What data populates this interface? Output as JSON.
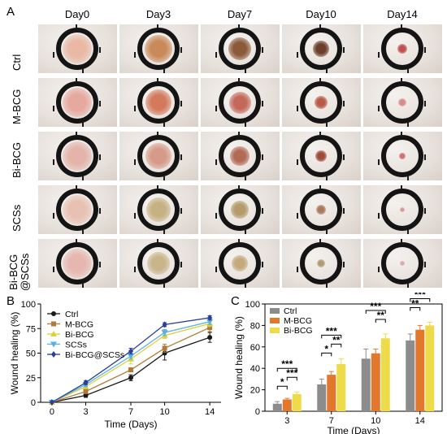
{
  "panels": {
    "a": "A",
    "b": "B",
    "c": "C"
  },
  "days": [
    "Day0",
    "Day3",
    "Day7",
    "Day10",
    "Day14"
  ],
  "groups": [
    "Ctrl",
    "M-BCG",
    "Bi-BCG",
    "SCSs",
    "Bi-BCG\n@SCSs"
  ],
  "wound_tones": [
    [
      "#e9b9a6",
      "#c98a5a",
      "#8c5a3a",
      "#6b3f2a",
      "#c05050"
    ],
    [
      "#e6a9a0",
      "#d47a5c",
      "#c4685a",
      "#b85a4a",
      "#d98a8a"
    ],
    [
      "#e4b4aa",
      "#d69a88",
      "#b26a55",
      "#a04a3a",
      "#cf7070"
    ],
    [
      "#e8c1b3",
      "#c6b182",
      "#b59a6a",
      "#a87a5a",
      "#d89a9a"
    ],
    [
      "#e6b7b0",
      "#c8b58a",
      "#c2aa7a",
      "#b29a74",
      "#dca8a8"
    ]
  ],
  "wound_sizes": [
    [
      1.0,
      0.95,
      0.8,
      0.55,
      0.35
    ],
    [
      1.0,
      0.9,
      0.75,
      0.45,
      0.28
    ],
    [
      1.0,
      0.9,
      0.65,
      0.4,
      0.2
    ],
    [
      1.0,
      0.85,
      0.6,
      0.35,
      0.18
    ],
    [
      1.0,
      0.8,
      0.55,
      0.3,
      0.16
    ]
  ],
  "chart_data": [
    {
      "type": "line",
      "ylabel": "Wound healing (%)",
      "xlabel": "Time (Days)",
      "x": [
        0,
        3,
        7,
        10,
        14
      ],
      "xlim": [
        -1,
        15
      ],
      "ylim": [
        0,
        100
      ],
      "yticks": [
        0,
        25,
        50,
        75,
        100
      ],
      "legend_position": "top-left",
      "series": [
        {
          "name": "Ctrl",
          "color": "#1a1a1a",
          "marker": "circle",
          "values": [
            0,
            7,
            25,
            50,
            66
          ],
          "err": [
            0,
            2,
            3,
            7,
            5
          ]
        },
        {
          "name": "M-BCG",
          "color": "#b07a3a",
          "marker": "square",
          "values": [
            0,
            11,
            33,
            55,
            76
          ],
          "err": [
            0,
            2,
            2,
            4,
            4
          ]
        },
        {
          "name": "Bi-BCG",
          "color": "#d9d23a",
          "marker": "triangle-up",
          "values": [
            0,
            16,
            44,
            68,
            80
          ],
          "err": [
            0,
            2,
            5,
            3,
            3
          ]
        },
        {
          "name": "SCSs",
          "color": "#5ab0e0",
          "marker": "triangle-down",
          "values": [
            0,
            18,
            47,
            71,
            82
          ],
          "err": [
            0,
            2,
            3,
            3,
            3
          ]
        },
        {
          "name": "Bi-BCG@SCSs",
          "color": "#2b3f9a",
          "marker": "diamond",
          "values": [
            0,
            20,
            52,
            79,
            86
          ],
          "err": [
            0,
            2,
            3,
            2,
            2
          ]
        }
      ]
    },
    {
      "type": "bar",
      "ylabel": "Wound healing (%)",
      "xlabel": "Time (Days)",
      "categories": [
        "3",
        "7",
        "10",
        "14"
      ],
      "ylim": [
        0,
        100
      ],
      "yticks": [
        0,
        20,
        40,
        60,
        80,
        100
      ],
      "legend_position": "top-left",
      "series": [
        {
          "name": "Ctrl",
          "color": "#8c8c8c",
          "values": [
            7,
            25,
            49,
            66
          ],
          "err": [
            2,
            5,
            9,
            6
          ]
        },
        {
          "name": "M-BCG",
          "color": "#e2782e",
          "values": [
            11,
            34,
            54,
            76
          ],
          "err": [
            1,
            3,
            4,
            4
          ]
        },
        {
          "name": "Bi-BCG",
          "color": "#eedb4a",
          "values": [
            16,
            44,
            68,
            80
          ],
          "err": [
            2,
            5,
            4,
            3
          ]
        }
      ],
      "significance": [
        {
          "cat": 0,
          "from": 0,
          "to": 1,
          "label": "*",
          "tier": 0
        },
        {
          "cat": 0,
          "from": 1,
          "to": 2,
          "label": "***",
          "tier": 1
        },
        {
          "cat": 0,
          "from": 0,
          "to": 2,
          "label": "***",
          "tier": 2
        },
        {
          "cat": 1,
          "from": 0,
          "to": 1,
          "label": "*",
          "tier": 0
        },
        {
          "cat": 1,
          "from": 1,
          "to": 2,
          "label": "**",
          "tier": 1
        },
        {
          "cat": 1,
          "from": 0,
          "to": 2,
          "label": "***",
          "tier": 2
        },
        {
          "cat": 2,
          "from": 1,
          "to": 2,
          "label": "**",
          "tier": 1
        },
        {
          "cat": 2,
          "from": 0,
          "to": 2,
          "label": "***",
          "tier": 2
        },
        {
          "cat": 3,
          "from": 0,
          "to": 1,
          "label": "**",
          "tier": 1
        },
        {
          "cat": 3,
          "from": 0,
          "to": 2,
          "label": "***",
          "tier": 2
        }
      ]
    }
  ]
}
